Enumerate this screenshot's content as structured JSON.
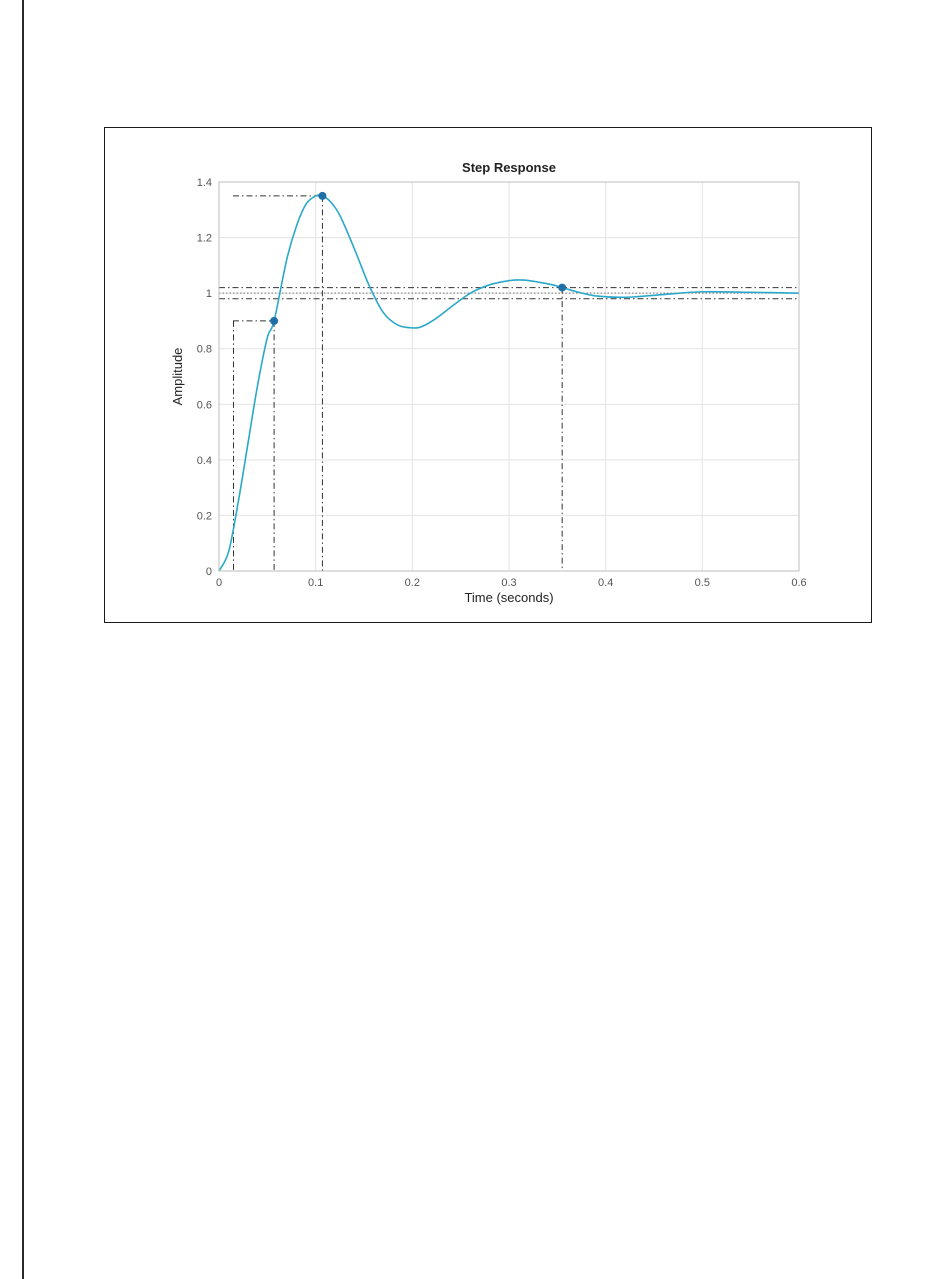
{
  "chart_data": {
    "type": "line",
    "title": "Step Response",
    "xlabel": "Time (seconds)",
    "ylabel": "Amplitude",
    "xlim": [
      0,
      0.6
    ],
    "ylim": [
      0,
      1.4
    ],
    "xticks": [
      0,
      0.1,
      0.2,
      0.3,
      0.4,
      0.5,
      0.6
    ],
    "xtick_labels": [
      "0",
      "0.1",
      "0.2",
      "0.3",
      "0.4",
      "0.5",
      "0.6"
    ],
    "yticks": [
      0,
      0.2,
      0.4,
      0.6,
      0.8,
      1.0,
      1.2,
      1.4
    ],
    "ytick_labels": [
      "0",
      "0.2",
      "0.4",
      "0.6",
      "0.8",
      "1",
      "1.2",
      "1.4"
    ],
    "grid": true,
    "colors": {
      "response": "#2aa8c9",
      "marker": "#1f6fa8",
      "guide": "#333333"
    },
    "series": [
      {
        "x": [
          0,
          0.01,
          0.02,
          0.03,
          0.04,
          0.05,
          0.057,
          0.07,
          0.08,
          0.09,
          0.1,
          0.107,
          0.115,
          0.125,
          0.14,
          0.155,
          0.17,
          0.185,
          0.2,
          0.21,
          0.225,
          0.24,
          0.26,
          0.28,
          0.3,
          0.315,
          0.33,
          0.345,
          0.355,
          0.37,
          0.39,
          0.42,
          0.46,
          0.5,
          0.55,
          0.6
        ],
        "y": [
          0,
          0.07,
          0.25,
          0.46,
          0.67,
          0.84,
          0.9,
          1.12,
          1.24,
          1.32,
          1.35,
          1.35,
          1.33,
          1.28,
          1.16,
          1.03,
          0.93,
          0.885,
          0.875,
          0.88,
          0.91,
          0.95,
          1.0,
          1.03,
          1.045,
          1.047,
          1.04,
          1.03,
          1.02,
          1.005,
          0.99,
          0.985,
          0.995,
          1.005,
          1.003,
          1.0
        ]
      }
    ],
    "markers": [
      {
        "x": 0.057,
        "y": 0.9
      },
      {
        "x": 0.107,
        "y": 1.35
      },
      {
        "x": 0.355,
        "y": 1.02
      }
    ],
    "guides": {
      "rise_time": {
        "x_start": 0.015,
        "x_end": 0.057,
        "y_low": 0.1,
        "y_high": 0.9
      },
      "peak": {
        "x": 0.107,
        "y": 1.35
      },
      "settling": {
        "x": 0.355,
        "upper": 1.02,
        "lower": 0.98
      },
      "steady_state": 1.0
    }
  }
}
